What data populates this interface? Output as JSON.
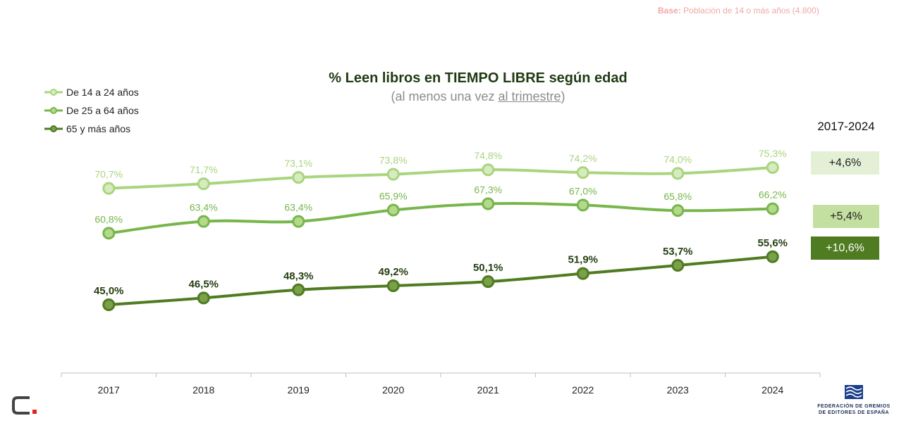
{
  "base_note": {
    "label": "Base:",
    "text": "Población de 14 o más años (4.800)"
  },
  "chart_data": {
    "type": "line",
    "title": "% Leen libros en TIEMPO LIBRE según edad",
    "subtitle_prefix": "(al menos una vez ",
    "subtitle_underlined": "al trimestre",
    "subtitle_suffix": ")",
    "categories": [
      "2017",
      "2018",
      "2019",
      "2020",
      "2021",
      "2022",
      "2023",
      "2024"
    ],
    "ylim": [
      40,
      80
    ],
    "grid": false,
    "legend_position": "top-left",
    "series": [
      {
        "name": "De 14 a 24 años",
        "values": [
          70.7,
          71.7,
          73.1,
          73.8,
          74.8,
          74.2,
          74.0,
          75.3
        ],
        "labels": [
          "70,7%",
          "71,7%",
          "73,1%",
          "73,8%",
          "74,8%",
          "74,2%",
          "74,0%",
          "75,3%"
        ],
        "color": "#a9d57e",
        "label_color": "#a9d57e",
        "label_bold": false
      },
      {
        "name": "De 25 a 64 años",
        "values": [
          60.8,
          63.4,
          63.4,
          65.9,
          67.3,
          67.0,
          65.8,
          66.2
        ],
        "labels": [
          "60,8%",
          "63,4%",
          "63,4%",
          "65,9%",
          "67,3%",
          "67,0%",
          "65,8%",
          "66,2%"
        ],
        "color": "#78b64b",
        "label_color": "#78b64b",
        "label_bold": false
      },
      {
        "name": "65 y más años",
        "values": [
          45.0,
          46.5,
          48.3,
          49.2,
          50.1,
          51.9,
          53.7,
          55.6
        ],
        "labels": [
          "45,0%",
          "46,5%",
          "48,3%",
          "49,2%",
          "50,1%",
          "51,9%",
          "53,7%",
          "55,6%"
        ],
        "color": "#4f7b21",
        "label_color": "#263f12",
        "label_bold": true
      }
    ],
    "period_label": "2017-2024",
    "deltas": [
      "+4,6%",
      "+5,4%",
      "+10,6%"
    ]
  },
  "logos": {
    "left": {
      "icon": "c-dot-logo-icon"
    },
    "right": {
      "icon": "fge-logo-icon",
      "line1": "FEDERACIÓN DE GREMIOS",
      "line2": "DE EDITORES DE ESPAÑA"
    }
  }
}
